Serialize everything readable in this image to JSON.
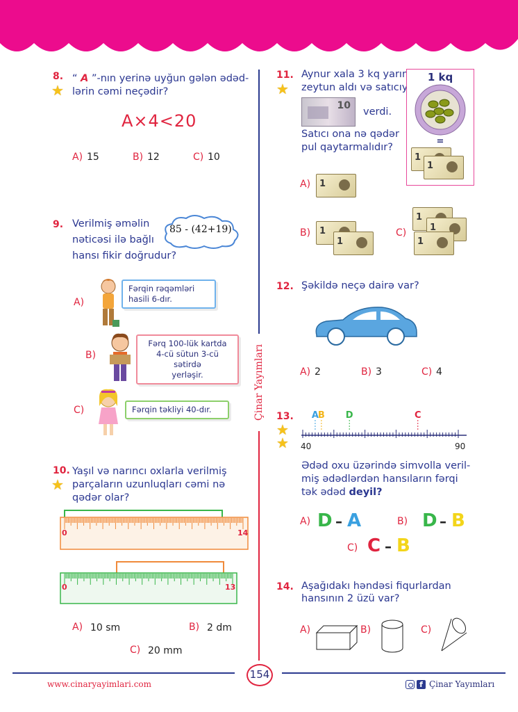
{
  "colors": {
    "header": "#ec0c8d",
    "title": "#2a3690",
    "number": "#e0243f",
    "divider_top": "#2b3a8f",
    "divider_bottom": "#e0243f"
  },
  "q8": {
    "num": "8.",
    "text_line1_pre": "“",
    "text_line1_A": "A",
    "text_line1_post": "”-nın yerinə uyğun gələn ədəd-",
    "text_line2": "lərin cəmi neçədir?",
    "expr": "A×4<20",
    "options": [
      {
        "label": "A)",
        "value": "15"
      },
      {
        "label": "B)",
        "value": "12"
      },
      {
        "label": "C)",
        "value": "10"
      }
    ]
  },
  "q9": {
    "num": "9.",
    "text_line1": "Verilmiş əməlin",
    "text_line2": "nəticəsi ilə bağlı",
    "text_line3": "hansı fikir doğrudur?",
    "cloud": "85 - (42+19)",
    "options": [
      {
        "label": "A)",
        "line1": "Fərqin rəqəmləri",
        "line2": "hasili 6-dır.",
        "line3": ""
      },
      {
        "label": "B)",
        "line1": "Fərq 100-lük kartda",
        "line2": "4-cü sütun 3-cü sətirdə",
        "line3": "yerləşir."
      },
      {
        "label": "C)",
        "line1": "Fərqin təkliyi 40-dır.",
        "line2": "",
        "line3": ""
      }
    ]
  },
  "q10": {
    "num": "10.",
    "text_line1": "Yaşıl və narıncı oxlarla verilmiş",
    "text_line2": "parçaların uzunluqları cəmi nə",
    "text_line3": "qədər olar?",
    "ruler1": {
      "start": "0",
      "end": "14"
    },
    "ruler2": {
      "start": "0",
      "end": "13"
    },
    "options": [
      {
        "label": "A)",
        "value": "10 sm"
      },
      {
        "label": "B)",
        "value": "2 dm"
      },
      {
        "label": "C)",
        "value": "20 mm"
      }
    ]
  },
  "q11": {
    "num": "11.",
    "text_line1": "Aynur xala 3 kq yarım",
    "text_line2": "zeytun aldı və satıcıya",
    "text_line3": "verdi.",
    "text_line4": "Satıcı ona nə qədər",
    "text_line5": "pul qaytarmalıdır?",
    "box_title": "1 kq",
    "eq": "=",
    "note_value": "10",
    "bill_value": "1",
    "options": [
      {
        "label": "A)"
      },
      {
        "label": "B)"
      },
      {
        "label": "C)"
      }
    ]
  },
  "q12": {
    "num": "12.",
    "text": "Şəkildə neçə dairə var?",
    "options": [
      {
        "label": "A)",
        "value": "2"
      },
      {
        "label": "B)",
        "value": "3"
      },
      {
        "label": "C)",
        "value": "4"
      }
    ]
  },
  "q13": {
    "num": "13.",
    "axis_start": "40",
    "axis_end": "90",
    "markers": [
      {
        "letter": "A",
        "value": 44,
        "color": "#3aa0e0"
      },
      {
        "letter": "B",
        "value": 46,
        "color": "#f3b51a"
      },
      {
        "letter": "D",
        "value": 55,
        "color": "#38b64a"
      },
      {
        "letter": "C",
        "value": 77,
        "color": "#e0243f"
      }
    ],
    "text_line1": "Ədəd oxu üzərində simvolla veril-",
    "text_line2": "miş ədədlərdən hansıların fərqi",
    "text_line3_pre": "tək ədəd ",
    "text_line3_bold": "deyil?",
    "options": [
      {
        "label": "A)",
        "first": "D",
        "second": "A"
      },
      {
        "label": "B)",
        "first": "D",
        "second": "B"
      },
      {
        "label": "C)",
        "first": "C",
        "second": "B"
      }
    ],
    "dash": "–"
  },
  "q14": {
    "num": "14.",
    "text_line1": "Aşağıdakı həndəsi fiqurlardan",
    "text_line2": "hansının 2 üzü var?",
    "options": [
      {
        "label": "A)"
      },
      {
        "label": "B)"
      },
      {
        "label": "C)"
      }
    ]
  },
  "side_label": "Çinar Yayımları",
  "footer": {
    "url": "www.cinaryayimlari.com",
    "page": "154",
    "brand": "Çinar Yayımları"
  }
}
